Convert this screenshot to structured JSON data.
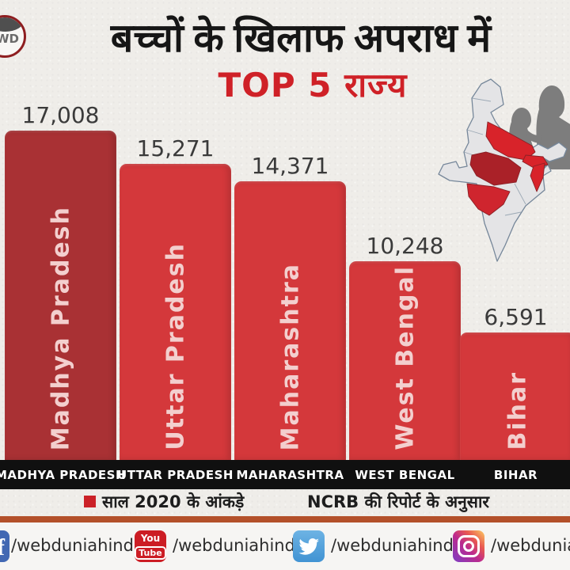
{
  "header": {
    "logo_text": "WD",
    "title_black": "बच्चों के खिलाफ अपराध में",
    "title_red": "TOP 5 राज्य"
  },
  "chart_data": {
    "type": "bar",
    "title": "बच्चों के खिलाफ अपराध में TOP 5 राज्य",
    "categories": [
      "Madhya Pradesh",
      "Uttar Pradesh",
      "Maharashtra",
      "West Bengal",
      "Bihar"
    ],
    "values": [
      17008,
      15271,
      14371,
      10248,
      6591
    ],
    "value_labels": [
      "17,008",
      "15,271",
      "14,371",
      "10,248",
      "6,591"
    ],
    "axis_labels": [
      "MADHYA PRADESH",
      "UTTAR PRADESH",
      "MAHARASHTRA",
      "WEST BENGAL",
      "BIHAR"
    ],
    "ylim": [
      0,
      17008
    ],
    "bar_colors": [
      "#a93134",
      "#d4383b",
      "#d4383b",
      "#d4383b",
      "#d4383b"
    ],
    "legend_position": "bottom",
    "grid": false
  },
  "footnote": {
    "legend_label": "साल 2020 के आंकड़े",
    "source_label": "NCRB की रिपोर्ट के अनुसार",
    "legend_color": "#cb2127"
  },
  "social": {
    "items": [
      {
        "icon": "facebook-icon",
        "handle": "/webduniahindi"
      },
      {
        "icon": "youtube-icon",
        "handle": "/webduniahindi"
      },
      {
        "icon": "twitter-icon",
        "handle": "/webduniahindi"
      },
      {
        "icon": "instagram-icon",
        "handle": "/webduniahindi"
      }
    ],
    "youtube_icon_text_top": "You",
    "youtube_icon_text_bottom": "Tube"
  },
  "colors": {
    "accent_red": "#cf2127",
    "dark_bar": "#a93134",
    "bright_bar": "#d4383b",
    "divider_rust": "#b3502a",
    "strip_black": "#101010",
    "paper": "#efede9"
  }
}
